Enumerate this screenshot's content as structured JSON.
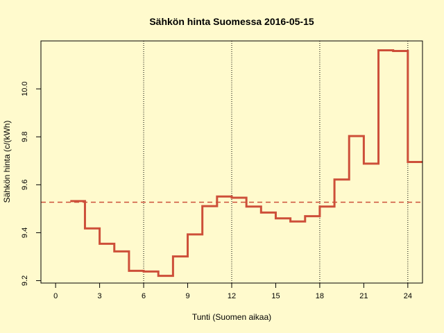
{
  "colors": {
    "background": "#fffacd",
    "series": "#cd4f39",
    "mean_line": "#cd4f39",
    "axis": "#000000",
    "grid": "#000000"
  },
  "chart_data": {
    "type": "line",
    "style": "step",
    "title": "Sähkön hinta Suomessa 2016-05-15",
    "xlabel": "Tunti (Suomen aikaa)",
    "ylabel": "Sähkön hinta (c/(kWh)",
    "xlim": [
      -1,
      25
    ],
    "ylim": [
      9.19,
      10.2
    ],
    "x_ticks": [
      0,
      3,
      6,
      9,
      12,
      15,
      18,
      21,
      24
    ],
    "y_ticks": [
      9.2,
      9.4,
      9.6,
      9.8,
      10.0
    ],
    "y_tick_labels": [
      "9.2",
      "9.4",
      "9.6",
      "9.8",
      "10.0"
    ],
    "vertical_gridlines": [
      6,
      12,
      18,
      24
    ],
    "grid": "dotted vertical lines at 6, 12, 18, 24",
    "legend": "none",
    "reference_line": {
      "style": "dashed",
      "y": 9.527
    },
    "series": [
      {
        "x": [
          1,
          2,
          3,
          4,
          5,
          6,
          7,
          8,
          9,
          10,
          11,
          12,
          13,
          14,
          15,
          16,
          17,
          18,
          19,
          20,
          21,
          22,
          23,
          24
        ],
        "values": [
          9.532,
          9.418,
          9.354,
          9.322,
          9.241,
          9.238,
          9.22,
          9.301,
          9.393,
          9.511,
          9.551,
          9.546,
          9.509,
          9.484,
          9.46,
          9.447,
          9.469,
          9.509,
          9.622,
          9.803,
          9.688,
          10.161,
          10.158,
          9.695
        ]
      }
    ]
  }
}
